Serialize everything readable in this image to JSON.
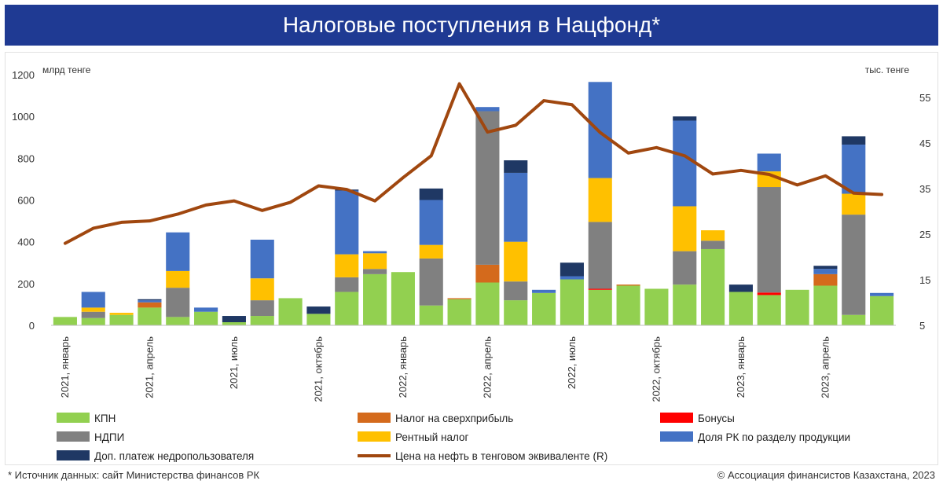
{
  "title": "Налоговые поступления в Нацфонд*",
  "footer": {
    "source": "* Источник данных: сайт Министерства финансов РК",
    "copyright": "© Ассоциация финансистов Казахстана, 2023"
  },
  "colors": {
    "title_bg": "#1f3a93",
    "kpn": "#92d050",
    "nalog_sverh": "#d46a1c",
    "bonusy": "#ff0000",
    "ndpi": "#808080",
    "rentny": "#ffc000",
    "dolya_rk": "#4472c4",
    "dop_platezh": "#1f3864",
    "oil_line": "#a0470f"
  },
  "chart_data": {
    "type": "bar",
    "stacked": true,
    "y_left": {
      "label": "млрд тенге",
      "lim": [
        0,
        1200
      ],
      "ticks": [
        "0",
        "200",
        "400",
        "600",
        "800",
        "1000",
        "1200"
      ]
    },
    "y_right": {
      "label": "тыс. тенге",
      "lim": [
        5,
        60
      ],
      "ticks": [
        "5",
        "15",
        "25",
        "35",
        "45",
        "55"
      ]
    },
    "x_tick_labels": [
      {
        "index": 0,
        "label": "2021, январь"
      },
      {
        "index": 3,
        "label": "2021, апрель"
      },
      {
        "index": 6,
        "label": "2021, июль"
      },
      {
        "index": 9,
        "label": "2021, октябрь"
      },
      {
        "index": 12,
        "label": "2022, январь"
      },
      {
        "index": 15,
        "label": "2022, апрель"
      },
      {
        "index": 18,
        "label": "2022, июль"
      },
      {
        "index": 21,
        "label": "2022, октябрь"
      },
      {
        "index": 24,
        "label": "2023, январь"
      },
      {
        "index": 27,
        "label": "2023, апрель"
      }
    ],
    "series": [
      {
        "name": "КПН",
        "key": "kpn",
        "values": [
          40,
          35,
          50,
          85,
          40,
          65,
          15,
          45,
          130,
          55,
          160,
          245,
          255,
          95,
          125,
          205,
          120,
          155,
          220,
          170,
          190,
          175,
          195,
          365,
          160,
          145,
          170,
          190,
          50,
          140
        ]
      },
      {
        "name": "Налог на сверхприбыль",
        "key": "nalog_sverh",
        "values": [
          0,
          0,
          0,
          25,
          0,
          0,
          0,
          0,
          0,
          0,
          0,
          0,
          0,
          0,
          5,
          85,
          0,
          0,
          0,
          0,
          5,
          0,
          0,
          0,
          0,
          0,
          0,
          55,
          0,
          0
        ]
      },
      {
        "name": "Бонусы",
        "key": "bonusy",
        "values": [
          0,
          0,
          0,
          0,
          0,
          0,
          0,
          0,
          0,
          0,
          0,
          0,
          0,
          0,
          0,
          0,
          0,
          0,
          0,
          5,
          0,
          0,
          0,
          0,
          0,
          12,
          0,
          0,
          0,
          0
        ]
      },
      {
        "name": "НДПИ",
        "key": "ndpi",
        "values": [
          0,
          30,
          0,
          0,
          140,
          0,
          0,
          75,
          0,
          0,
          70,
          25,
          0,
          225,
          0,
          735,
          90,
          0,
          0,
          320,
          0,
          0,
          160,
          40,
          0,
          505,
          0,
          0,
          480,
          0
        ]
      },
      {
        "name": "Рентный налог",
        "key": "rentny",
        "values": [
          0,
          20,
          10,
          0,
          80,
          0,
          0,
          105,
          0,
          0,
          110,
          75,
          0,
          65,
          0,
          0,
          190,
          0,
          0,
          210,
          0,
          0,
          215,
          50,
          0,
          75,
          0,
          0,
          100,
          0
        ]
      },
      {
        "name": "Доля РК по разделу продукции",
        "key": "dolya_rk",
        "values": [
          0,
          75,
          0,
          10,
          185,
          20,
          0,
          185,
          0,
          0,
          305,
          10,
          0,
          215,
          0,
          20,
          330,
          15,
          15,
          460,
          0,
          0,
          410,
          0,
          0,
          85,
          0,
          25,
          235,
          15
        ]
      },
      {
        "name": "Доп. платеж недропользователя",
        "key": "dop_platezh",
        "values": [
          0,
          0,
          0,
          5,
          0,
          0,
          30,
          0,
          0,
          35,
          5,
          0,
          0,
          55,
          0,
          0,
          60,
          0,
          65,
          0,
          0,
          0,
          20,
          0,
          35,
          0,
          0,
          15,
          40,
          0
        ]
      }
    ],
    "line": {
      "name": "Цена на нефть в тенговом эквиваленте (R)",
      "key": "oil_line",
      "axis": "right",
      "values": [
        23,
        26.3,
        27.6,
        27.9,
        29.4,
        31.4,
        32.3,
        30.2,
        32,
        35.6,
        34.8,
        32.3,
        37.4,
        42.2,
        58,
        47.4,
        48.9,
        54.3,
        53.4,
        47.3,
        42.8,
        44,
        42.2,
        38.2,
        39,
        38.1,
        35.8,
        37.8,
        34,
        33.7
      ]
    },
    "legend": {
      "position": "bottom"
    }
  }
}
